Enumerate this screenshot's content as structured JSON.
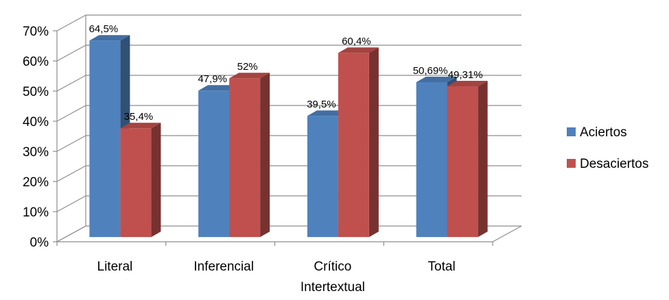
{
  "chart_data": {
    "type": "bar",
    "categories": [
      "Literal",
      "Inferencial",
      "Crítico Intertextual",
      "Total"
    ],
    "series": [
      {
        "name": "Aciertos",
        "values": [
          64.5,
          47.9,
          39.5,
          50.69
        ],
        "labels": [
          "64,5%",
          "47,9%",
          "39,5%",
          "50,69%"
        ],
        "color": "#4f81bd"
      },
      {
        "name": "Desaciertos",
        "values": [
          35.4,
          52,
          60.4,
          49.31
        ],
        "labels": [
          "35,4%",
          "52%",
          "60,4%",
          "49,31%"
        ],
        "color": "#c0504d"
      }
    ],
    "yticks": [
      "0%",
      "10%",
      "20%",
      "30%",
      "40%",
      "50%",
      "60%",
      "70%"
    ],
    "ylim": [
      0,
      70
    ],
    "grid": true,
    "three_d": true,
    "legend_position": "right"
  }
}
